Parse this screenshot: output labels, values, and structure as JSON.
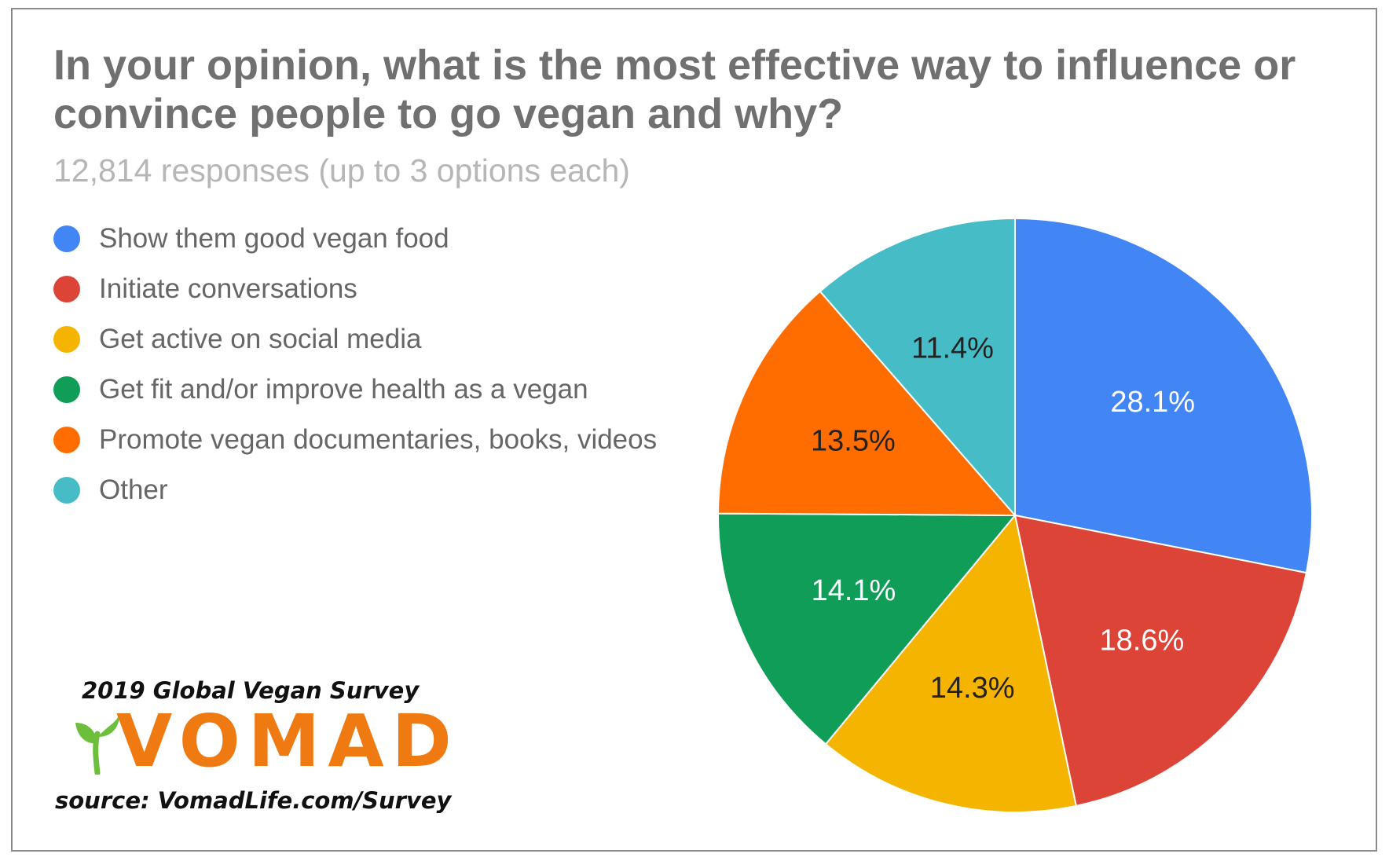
{
  "chart_data": {
    "type": "pie",
    "title": "In your opinion, what is the most effective way to influence or convince people to go vegan and why?",
    "subtitle": "12,814 responses (up to 3 options each)",
    "legend_position": "left",
    "slices": [
      {
        "label": "Show them good vegan food",
        "value": 28.1,
        "value_label": "28.1%",
        "color": "#4285f4",
        "text_color": "#ffffff"
      },
      {
        "label": "Initiate conversations",
        "value": 18.6,
        "value_label": "18.6%",
        "color": "#db4437",
        "text_color": "#ffffff"
      },
      {
        "label": "Get active on social media",
        "value": 14.3,
        "value_label": "14.3%",
        "color": "#f4b400",
        "text_color": "#222222"
      },
      {
        "label": "Get fit and/or improve health as a vegan",
        "value": 14.1,
        "value_label": "14.1%",
        "color": "#0f9d58",
        "text_color": "#ffffff"
      },
      {
        "label": "Promote vegan documentaries, books, videos",
        "value": 13.5,
        "value_label": "13.5%",
        "color": "#ff6d01",
        "text_color": "#222222"
      },
      {
        "label": "Other",
        "value": 11.4,
        "value_label": "11.4%",
        "color": "#46bdc6",
        "text_color": "#222222"
      }
    ]
  },
  "branding": {
    "survey_name": "2019 Global Vegan Survey",
    "logo_text": "VOMAD",
    "source": "source: VomadLife.com/Survey",
    "logo_color": "#f07a12",
    "leaf_color": "#6bbf3a"
  }
}
